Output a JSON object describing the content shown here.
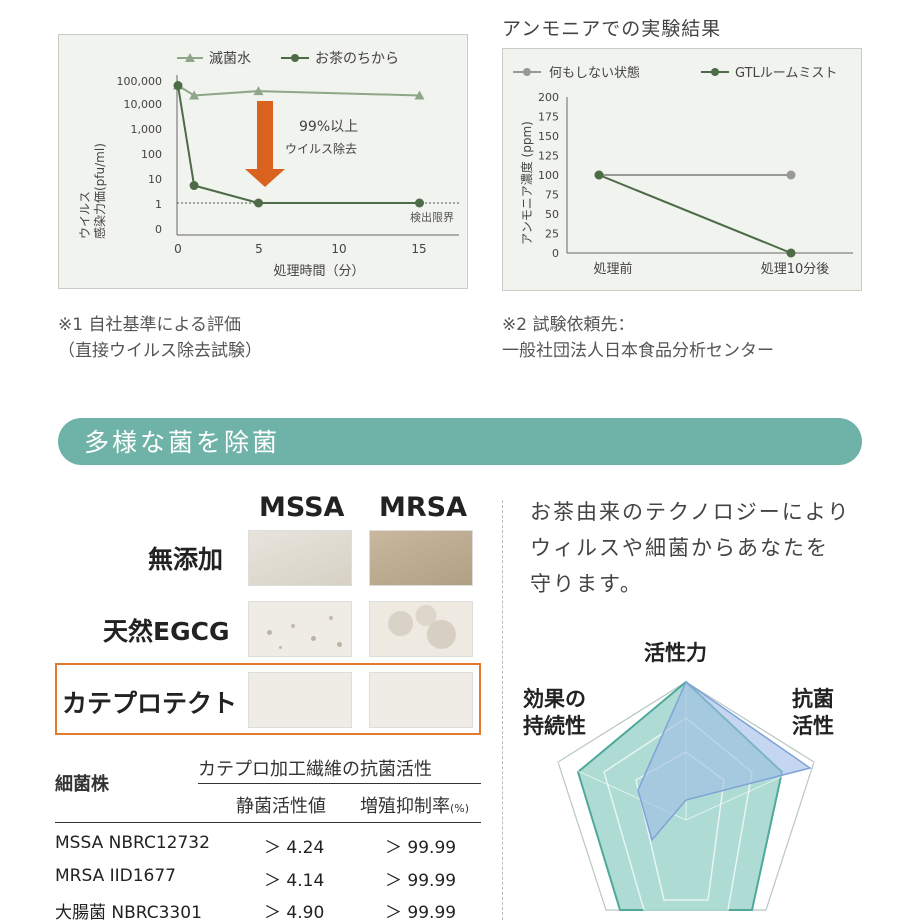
{
  "virus_chart": {
    "legend": {
      "series1": "滅菌水",
      "series2": "お茶のちから"
    },
    "ylabel_line1": "ウイルス",
    "ylabel_line2": "感染力価(pfu/ml)",
    "y_ticks": [
      "100,000",
      "10,000",
      "1,000",
      "100",
      "10",
      "1",
      "0"
    ],
    "x_ticks": [
      "0",
      "5",
      "10",
      "15"
    ],
    "xlabel": "処理時間（分）",
    "annotation_line1": "99%以上",
    "annotation_line2": "ウイルス除去",
    "limit_label": "検出限界",
    "colors": {
      "series1": "#8fa689",
      "series2": "#4e6b47",
      "arrow": "#d9621f"
    }
  },
  "ammonia_chart": {
    "title": "アンモニアでの実験結果",
    "legend": {
      "series1": "何もしない状態",
      "series2": "GTLルームミスト"
    },
    "ylabel": "アンモニア濃度 (ppm)",
    "y_ticks": [
      "200",
      "175",
      "150",
      "125",
      "100",
      "75",
      "50",
      "25",
      "0"
    ],
    "x_ticks": [
      "処理前",
      "処理10分後"
    ],
    "colors": {
      "series1": "#999999",
      "series2": "#4e6b47"
    }
  },
  "chart_data": [
    {
      "type": "line",
      "x": [
        0,
        1,
        5,
        15
      ],
      "series": [
        {
          "name": "滅菌水",
          "values": [
            50000,
            20000,
            30000,
            20000
          ]
        },
        {
          "name": "お茶のちから",
          "values": [
            50000,
            5,
            1,
            1
          ]
        }
      ],
      "xlabel": "処理時間（分）",
      "ylabel": "ウイルス 感染力価(pfu/ml)",
      "yscale": "log",
      "ylim": [
        0,
        100000
      ],
      "xlim": [
        0,
        17
      ],
      "legend_position": "top"
    },
    {
      "type": "line",
      "categories": [
        "処理前",
        "処理10分後"
      ],
      "series": [
        {
          "name": "何もしない状態",
          "values": [
            100,
            100
          ]
        },
        {
          "name": "GTLルームミスト",
          "values": [
            100,
            0
          ]
        }
      ],
      "title": "アンモニアでの実験結果",
      "ylabel": "アンモニア濃度 (ppm)",
      "ylim": [
        0,
        200
      ],
      "legend_position": "top"
    }
  ],
  "notes": {
    "note1_line1": "※1 自社基準による評価",
    "note1_line2": "（直接ウイルス除去試験）",
    "note2_line1": "※2 試験依頼先：",
    "note2_line2": "一般社団法人日本食品分析センター"
  },
  "section": {
    "title": "多様な菌を除菌"
  },
  "comparison": {
    "columns": [
      "MSSA",
      "MRSA"
    ],
    "rows": [
      "無添加",
      "天然EGCG",
      "カテプロテクト"
    ]
  },
  "table": {
    "strain_header": "細菌株",
    "group_header": "カテプロ加工繊維の抗菌活性",
    "col1_header": "静菌活性値",
    "col2_header": "増殖抑制率",
    "col2_unit": "(%)",
    "rows": [
      {
        "strain": "MSSA NBRC12732",
        "activity": "＞ 4.24",
        "rate": "＞ 99.99"
      },
      {
        "strain": "MRSA IID1677",
        "activity": "＞ 4.14",
        "rate": "＞ 99.99"
      },
      {
        "strain": "大腸菌 NBRC3301",
        "activity": "＞ 4.90",
        "rate": "＞ 99.99"
      }
    ]
  },
  "description": {
    "line1": "お茶由来のテクノロジーにより",
    "line2": "ウィルスや細菌からあなたを",
    "line3": "守ります。"
  },
  "radar": {
    "axis_top": "活性力",
    "axis_left_line1": "効果の",
    "axis_left_line2": "持続性",
    "axis_right_line1": "抗菌",
    "axis_right_line2": "活性",
    "colors": {
      "outer": "#8fc9bf",
      "fill": "#5fb5a8",
      "line": "#4ea99b",
      "compare": "#9fbde6"
    }
  }
}
